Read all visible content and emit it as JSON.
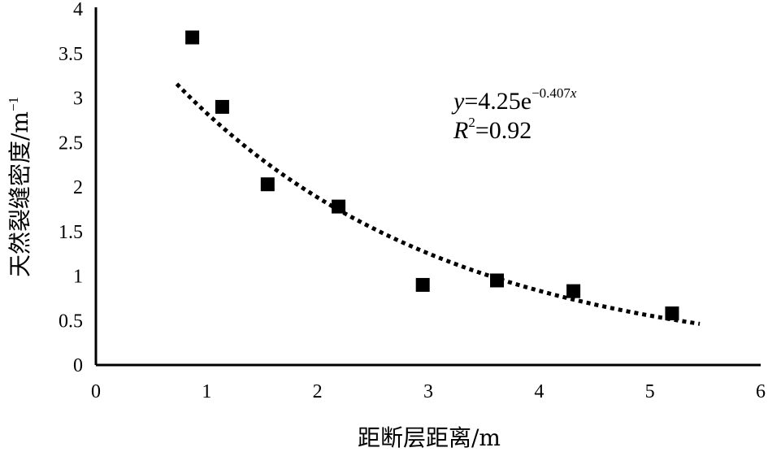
{
  "chart_data": {
    "type": "scatter",
    "title": "",
    "xlabel": "距断层距离/m",
    "ylabel": "天然裂缝密度/m",
    "ylabel_sup": "−1",
    "xlim": [
      0,
      6
    ],
    "ylim": [
      0,
      4
    ],
    "x_ticks": [
      "0",
      "1",
      "2",
      "3",
      "4",
      "5",
      "6"
    ],
    "y_ticks": [
      "0",
      "0.5",
      "1",
      "1.5",
      "2",
      "2.5",
      "3",
      "3.5",
      "4"
    ],
    "grid": false,
    "legend": "none",
    "series": [
      {
        "marker": "square",
        "color": "#000000",
        "points": [
          {
            "x": 0.87,
            "y": 3.68
          },
          {
            "x": 1.14,
            "y": 2.9
          },
          {
            "x": 1.55,
            "y": 2.03
          },
          {
            "x": 2.19,
            "y": 1.78
          },
          {
            "x": 2.95,
            "y": 0.9
          },
          {
            "x": 3.62,
            "y": 0.95
          },
          {
            "x": 4.31,
            "y": 0.83
          },
          {
            "x": 5.2,
            "y": 0.58
          }
        ]
      }
    ],
    "trendline": {
      "type": "exponential",
      "a": 4.25,
      "b": -0.407,
      "x_range": [
        0.73,
        5.45
      ],
      "style": "dotted",
      "color": "#000000"
    },
    "annotation": {
      "eq_y": "y",
      "eq_main": "=4.25e",
      "eq_exp_prefix": "−0.407",
      "eq_exp_var": "x",
      "r_var": "R",
      "r_sup": "2",
      "r_value": "=0.92"
    }
  }
}
